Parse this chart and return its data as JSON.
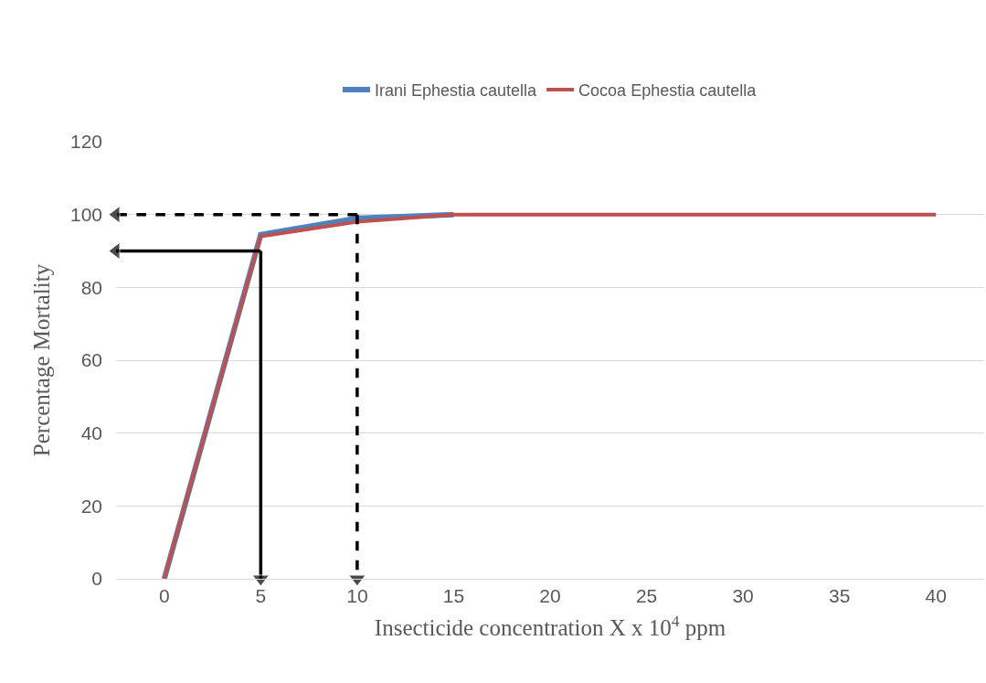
{
  "chart_data": {
    "type": "line",
    "xlabel": "Insecticide concentration X x 10$^{4}$ ppm",
    "ylabel": "Percentage Mortality",
    "x": [
      0,
      5,
      10,
      15,
      20,
      25,
      30,
      35,
      40
    ],
    "series": [
      {
        "name": "Irani Ephestia cautella",
        "color": "#4f81bd",
        "values": [
          0,
          94.5,
          99,
          100,
          null,
          null,
          null,
          null,
          null
        ]
      },
      {
        "name": "Cocoa Ephestia cautella",
        "color": "#c0504d",
        "values": [
          0,
          94,
          98,
          100,
          100,
          100,
          100,
          100,
          100
        ]
      },
      {
        "type": "line",
        "x": [
          5,
          5
        ],
        "values": [
          90,
          0
        ],
        "color": "#000000",
        "line_style": "solid",
        "marker": "triangle"
      },
      {
        "type": "line",
        "x": [
          5,
          -2.5
        ],
        "values": [
          90,
          90
        ],
        "color": "#000000",
        "line_style": "solid",
        "marker": "triangle"
      },
      {
        "type": "line",
        "x": [
          10,
          10
        ],
        "values": [
          100,
          0
        ],
        "color": "#000000",
        "line_style": "dashed",
        "marker": "triangle"
      },
      {
        "type": "line",
        "x": [
          10,
          -2.5
        ],
        "values": [
          100,
          100
        ],
        "color": "#000000",
        "line_style": "dashed",
        "marker": "triangle"
      }
    ],
    "xlim": [
      -2.5,
      42.5
    ],
    "xticks": [
      0,
      5,
      10,
      15,
      20,
      25,
      30,
      35,
      40
    ],
    "ylim": [
      0,
      120
    ],
    "yticks": [
      0,
      20,
      40,
      60,
      80,
      100,
      120
    ],
    "grid": "y",
    "legend": "top",
    "marker": "none",
    "line_style": "solid"
  }
}
